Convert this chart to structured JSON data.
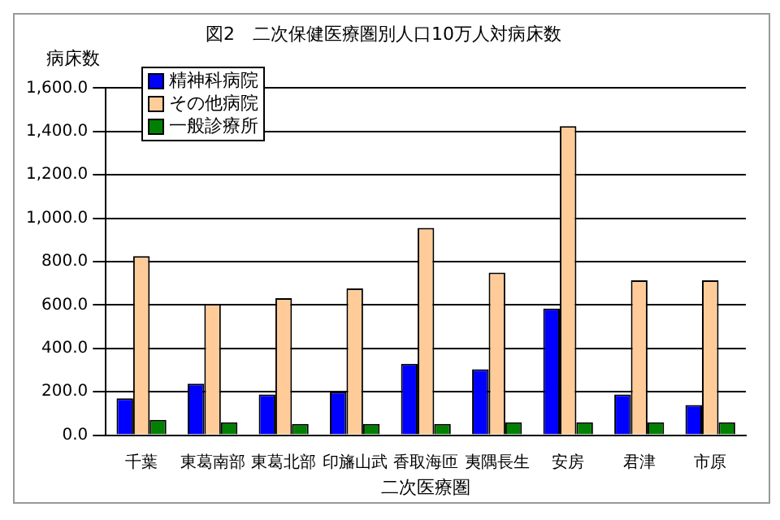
{
  "chart_data": {
    "type": "bar",
    "title": "図2　二次保健医療圏別人口10万人対病床数",
    "ylabel": "病床数",
    "xlabel": "二次医療圏",
    "categories": [
      "千葉",
      "東葛南部",
      "東葛北部",
      "印旛山武",
      "香取海匝",
      "夷隅長生",
      "安房",
      "君津",
      "市原"
    ],
    "series": [
      {
        "name": "精神科病院",
        "color": "#0000ff",
        "values": [
          170,
          237,
          188,
          200,
          329,
          304,
          584,
          188,
          139
        ]
      },
      {
        "name": "その他病院",
        "color": "#ffcc99",
        "values": [
          825,
          605,
          631,
          676,
          955,
          749,
          1425,
          714,
          714
        ]
      },
      {
        "name": "一般診療所",
        "color": "#008000",
        "values": [
          71,
          59,
          52,
          52,
          52,
          59,
          59,
          59,
          59
        ]
      }
    ],
    "ylim": [
      0,
      1600
    ],
    "yticks": [
      {
        "value": 0,
        "label": "0.0"
      },
      {
        "value": 200,
        "label": "200.0"
      },
      {
        "value": 400,
        "label": "400.0"
      },
      {
        "value": 600,
        "label": "600.0"
      },
      {
        "value": 800,
        "label": "800.0"
      },
      {
        "value": 1000,
        "label": "1,000.0"
      },
      {
        "value": 1200,
        "label": "1,200.0"
      },
      {
        "value": 1400,
        "label": "1,400.0"
      },
      {
        "value": 1600,
        "label": "1,600.0"
      }
    ],
    "grid": "y",
    "legend": "top left"
  }
}
